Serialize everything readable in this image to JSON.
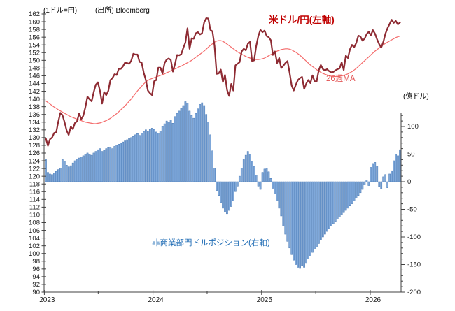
{
  "header": {
    "left_axis_unit": "(1ドル=円)",
    "source": "(出所) Bloomberg",
    "right_axis_unit": "(億ドル)"
  },
  "annotations": {
    "usdjpy_label": "米ドル/円(左軸)",
    "ma_label": "26週MA",
    "position_label": "非商業部門ドルポジション(右軸)"
  },
  "colors": {
    "usdjpy_line": "#8e2b33",
    "ma_line": "#f46a6a",
    "bar_fill": "#7fa8da",
    "bar_border": "#4677b3",
    "usdjpy_label": "#c00000",
    "ma_label": "#e25050",
    "position_label": "#1f6cb5",
    "axis": "#404040"
  },
  "chart_data": {
    "type": "combo",
    "title": "",
    "x_axis": {
      "tick_labels": [
        "2023",
        "2024",
        "2025",
        "2026"
      ],
      "frequency": "weekly",
      "start_label": "2023",
      "minor_ticks": "mid-year"
    },
    "left_axis": {
      "title": "(1ドル=円)",
      "min": 90,
      "max": 162,
      "tick_step": 2
    },
    "right_axis": {
      "title": "(億ドル)",
      "min": -200,
      "max": 125,
      "label_step": 50,
      "minor_step": 10,
      "label_min": -200,
      "label_max": 100
    },
    "series": [
      {
        "name": "米ドル/円(左軸)",
        "type": "line",
        "axis": "left",
        "values": [
          129.8,
          127.9,
          129.6,
          130.0,
          131.2,
          131.4,
          134.2,
          136.4,
          135.8,
          134.0,
          131.8,
          130.7,
          132.8,
          132.2,
          133.8,
          134.2,
          136.3,
          134.8,
          135.7,
          137.9,
          140.6,
          139.9,
          139.4,
          141.8,
          143.7,
          144.3,
          142.1,
          138.8,
          141.8,
          141.0,
          142.1,
          144.9,
          145.4,
          146.4,
          146.2,
          147.8,
          147.8,
          148.4,
          149.4,
          149.3,
          149.1,
          149.9,
          151.7,
          151.5,
          151.5,
          149.6,
          149.4,
          146.8,
          144.9,
          142.2,
          141.5,
          141.0,
          144.6,
          144.9,
          148.1,
          148.1,
          146.6,
          149.3,
          150.2,
          150.5,
          150.1,
          147.1,
          149.0,
          151.4,
          151.3,
          151.6,
          153.2,
          154.6,
          158.3,
          153.0,
          155.7,
          155.6,
          157.0,
          157.3,
          156.7,
          157.0,
          159.8,
          160.9,
          160.8,
          157.9,
          157.5,
          153.7,
          146.5,
          146.6,
          147.6,
          144.4,
          146.2,
          142.3,
          140.8,
          143.9,
          142.2,
          148.7,
          149.1,
          149.5,
          152.3,
          153.0,
          152.6,
          154.3,
          154.8,
          149.8,
          150.0,
          153.7,
          156.3,
          157.9,
          157.3,
          157.7,
          156.3,
          156.0,
          155.2,
          151.4,
          152.3,
          149.3,
          150.6,
          148.0,
          148.6,
          149.3,
          149.8,
          146.9,
          143.5,
          142.2,
          143.7,
          144.9,
          145.4,
          145.7,
          142.6,
          144.0,
          144.9,
          144.1,
          146.1,
          144.6,
          144.5,
          147.4,
          148.8,
          147.7,
          147.4,
          147.7,
          147.2,
          146.9,
          147.0,
          147.4,
          147.7,
          147.9,
          149.5,
          147.5,
          151.2,
          150.6,
          152.9,
          154.0,
          153.4,
          154.5,
          156.4,
          156.2,
          155.1,
          155.6,
          156.8,
          157.4,
          156.5,
          157.8,
          156.9,
          155.4,
          154.2,
          153.3,
          154.8,
          156.9,
          158.3,
          159.4,
          160.5,
          159.7,
          160.2,
          159.3,
          159.8
        ]
      },
      {
        "name": "26週MA",
        "type": "line",
        "axis": "left",
        "values": [
          139.5,
          139.1,
          138.7,
          138.3,
          137.9,
          137.6,
          137.2,
          136.9,
          136.6,
          136.3,
          136.0,
          135.7,
          135.4,
          135.2,
          135.0,
          134.8,
          134.6,
          134.4,
          134.2,
          134.0,
          133.9,
          133.8,
          133.7,
          133.6,
          133.6,
          133.7,
          133.8,
          134.0,
          134.2,
          134.4,
          134.7,
          135.0,
          135.4,
          135.8,
          136.2,
          136.7,
          137.2,
          137.7,
          138.2,
          138.8,
          139.4,
          140.0,
          140.7,
          141.4,
          142.1,
          142.7,
          143.3,
          143.9,
          144.4,
          144.8,
          145.1,
          145.3,
          145.5,
          145.7,
          145.9,
          146.1,
          146.3,
          146.5,
          146.8,
          147.0,
          147.3,
          147.5,
          147.8,
          148.0,
          148.3,
          148.5,
          148.8,
          149.1,
          149.4,
          149.7,
          150.0,
          150.4,
          150.8,
          151.2,
          151.6,
          152.0,
          152.4,
          152.9,
          153.4,
          153.9,
          154.3,
          154.7,
          155.0,
          155.1,
          155.1,
          154.9,
          154.6,
          154.2,
          153.8,
          153.4,
          153.0,
          152.6,
          152.2,
          151.9,
          151.6,
          151.3,
          151.0,
          150.8,
          150.6,
          150.4,
          150.3,
          150.2,
          150.2,
          150.3,
          150.4,
          150.6,
          150.9,
          151.2,
          151.5,
          151.8,
          152.1,
          152.4,
          152.6,
          152.8,
          152.9,
          153.0,
          153.0,
          152.9,
          152.7,
          152.4,
          152.1,
          151.7,
          151.3,
          150.8,
          150.3,
          149.8,
          149.3,
          148.8,
          148.4,
          148.0,
          147.6,
          147.2,
          146.9,
          146.6,
          146.4,
          146.2,
          146.0,
          145.9,
          145.8,
          145.8,
          145.8,
          145.9,
          146.0,
          146.1,
          146.3,
          146.5,
          146.8,
          147.1,
          147.5,
          147.9,
          148.4,
          148.9,
          149.4,
          149.9,
          150.4,
          150.9,
          151.4,
          151.9,
          152.4,
          152.8,
          153.2,
          153.6,
          154.0,
          154.4,
          154.7,
          155.0,
          155.3,
          155.6,
          155.9,
          156.1,
          156.3
        ]
      },
      {
        "name": "非商業部門ドルポジション(右軸)",
        "type": "bar",
        "axis": "right",
        "values": [
          40,
          17,
          14,
          13,
          16,
          19,
          22,
          25,
          40,
          37,
          30,
          27,
          29,
          34,
          38,
          41,
          43,
          45,
          47,
          50,
          52,
          50,
          48,
          52,
          55,
          58,
          60,
          55,
          57,
          60,
          62,
          63,
          60,
          64,
          66,
          68,
          70,
          72,
          74,
          76,
          78,
          80,
          82,
          85,
          87,
          84,
          88,
          91,
          94,
          92,
          95,
          97,
          95,
          90,
          88,
          92,
          100,
          105,
          110,
          108,
          112,
          106,
          118,
          124,
          128,
          133,
          138,
          145,
          142,
          128,
          120,
          115,
          124,
          132,
          140,
          143,
          138,
          122,
          108,
          85,
          56,
          25,
          -16,
          -25,
          -38,
          -48,
          -55,
          -58,
          -52,
          -45,
          -35,
          -18,
          -8,
          10,
          25,
          40,
          48,
          55,
          50,
          37,
          28,
          12,
          -8,
          -14,
          17,
          23,
          25,
          18,
          6,
          -12,
          -22,
          -35,
          -48,
          -62,
          -80,
          -95,
          -108,
          -120,
          -132,
          -142,
          -150,
          -155,
          -157,
          -152,
          -155,
          -148,
          -140,
          -135,
          -128,
          -122,
          -118,
          -112,
          -106,
          -100,
          -95,
          -90,
          -85,
          -80,
          -76,
          -72,
          -68,
          -64,
          -60,
          -56,
          -52,
          -48,
          -44,
          -40,
          -35,
          -30,
          -25,
          -20,
          -14,
          -6,
          3,
          -7,
          26,
          33,
          35,
          28,
          -9,
          -13,
          9,
          13,
          -11,
          14,
          20,
          38,
          50,
          47,
          58
        ]
      }
    ]
  }
}
